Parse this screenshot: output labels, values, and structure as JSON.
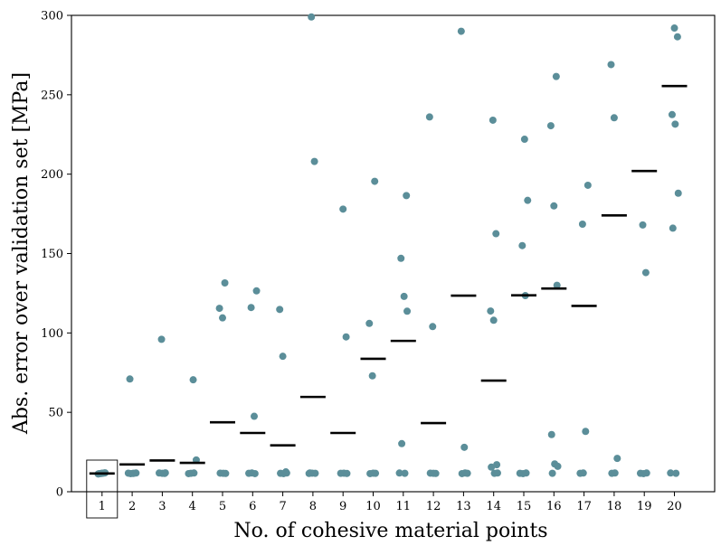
{
  "chart_data": {
    "type": "scatter",
    "title": "",
    "xlabel": "No. of cohesive material points",
    "ylabel": "Abs. error over validation set [MPa]",
    "ylim": [
      0,
      300
    ],
    "yticks": [
      0,
      50,
      100,
      150,
      200,
      250,
      300
    ],
    "categories": [
      "1",
      "2",
      "3",
      "4",
      "5",
      "6",
      "7",
      "8",
      "9",
      "10",
      "11",
      "12",
      "13",
      "14",
      "15",
      "16",
      "17",
      "18",
      "19",
      "20"
    ],
    "highlighted_category": "1",
    "grid": false,
    "colors": {
      "points": "#5b8e99",
      "mean": "#000000",
      "axis": "#000000"
    },
    "points": [
      [
        11.2,
        11.5,
        11.8,
        11.3,
        11.6,
        11.9,
        11.4,
        11.7
      ],
      [
        71,
        11.5,
        11.8,
        11.4,
        11.6,
        11.7
      ],
      [
        96,
        11.5,
        11.8,
        11.6,
        11.9
      ],
      [
        70.5,
        20,
        11.6,
        11.8,
        11.4
      ],
      [
        131.5,
        115.5,
        109.5,
        11.5,
        11.7,
        11.6
      ],
      [
        126.5,
        116,
        47.5,
        11.6,
        11.8,
        11.4
      ],
      [
        114.8,
        85.3,
        12.5,
        11.6,
        11.4,
        11.8
      ],
      [
        299,
        208,
        11.5,
        11.7,
        11.6,
        11.8
      ],
      [
        178,
        97.5,
        11.6,
        11.7,
        11.5
      ],
      [
        195.5,
        106,
        73,
        11.6,
        11.4,
        11.7
      ],
      [
        186.5,
        147,
        123,
        113.7,
        30.3,
        11.6,
        11.8
      ],
      [
        236,
        104,
        11.5,
        11.7,
        11.6
      ],
      [
        290,
        28,
        11.6,
        11.4,
        11.8
      ],
      [
        234,
        162.5,
        113.8,
        108,
        17,
        15.5,
        11.6,
        11.8
      ],
      [
        222,
        183.5,
        155,
        123.5,
        11.6,
        11.4,
        11.8
      ],
      [
        261.5,
        230.5,
        180,
        130,
        36,
        17.5,
        16,
        11.6
      ],
      [
        193,
        168.5,
        38,
        11.6,
        11.8
      ],
      [
        269,
        235.5,
        21,
        11.6,
        11.8
      ],
      [
        168,
        138,
        11.6,
        11.4,
        11.8
      ],
      [
        292,
        286.5,
        237.5,
        231.5,
        188,
        166,
        11.6,
        11.8
      ]
    ],
    "means": [
      11.5,
      17.2,
      19.7,
      18.2,
      43.7,
      37,
      29.2,
      59.7,
      37,
      83.7,
      95,
      43.2,
      123.5,
      70,
      123.7,
      128,
      117,
      174,
      202,
      255.5
    ]
  }
}
